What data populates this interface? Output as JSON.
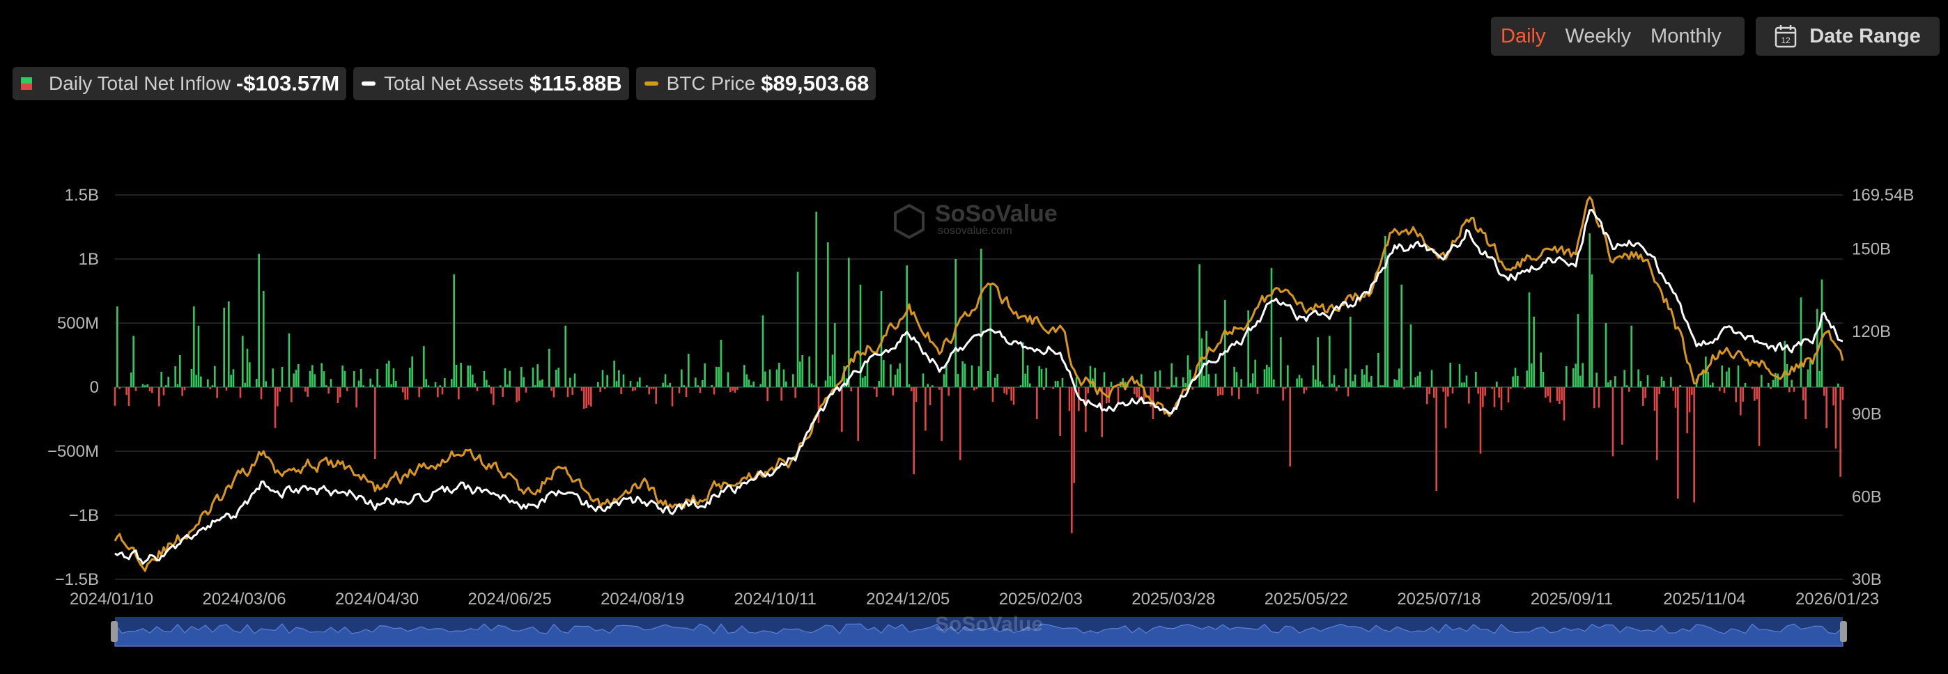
{
  "controls": {
    "periods": [
      {
        "label": "Daily",
        "active": true
      },
      {
        "label": "Weekly",
        "active": false
      },
      {
        "label": "Monthly",
        "active": false
      }
    ],
    "date_range_label": "Date Range",
    "date_range_icon": "calendar-icon",
    "calendar_icon_text": "12"
  },
  "legend": {
    "inflow": {
      "label": "Daily Total Net Inflow",
      "value": "-$103.57M",
      "colors": [
        "#2ecc60",
        "#e04646"
      ]
    },
    "assets": {
      "label": "Total Net Assets",
      "value": "$115.88B",
      "color": "#ffffff"
    },
    "btc": {
      "label": "BTC Price",
      "value": "$89,503.68",
      "color": "#d9961c"
    }
  },
  "watermark": {
    "name": "SoSoValue",
    "url": "sosovalue.com"
  },
  "chart_data": {
    "type": "bar",
    "x_range": [
      "2024/01/10",
      "2026/01/23"
    ],
    "x_tick_labels": [
      "2024/01/10",
      "2024/03/06",
      "2024/04/30",
      "2024/06/25",
      "2024/08/19",
      "2024/10/11",
      "2024/12/05",
      "2025/02/03",
      "2025/03/28",
      "2025/05/22",
      "2025/07/18",
      "2025/09/11",
      "2025/11/04",
      "2026/01/23"
    ],
    "y_left": {
      "ticks": [
        1.5,
        1,
        0.5,
        0,
        -0.5,
        -1,
        -1.5
      ],
      "tick_labels": [
        "1.5B",
        "1B",
        "500M",
        "0",
        "−500M",
        "−1B",
        "−1.5B"
      ],
      "ylim": [
        -1.5,
        1.5
      ],
      "unit": "USD billions"
    },
    "y_right": {
      "tick_labels": [
        "169.54B",
        "150B",
        "120B",
        "90B",
        "60B",
        "30B"
      ],
      "tick_values": [
        169.54,
        150,
        120,
        90,
        60,
        30
      ],
      "ylim": [
        30,
        169.54
      ],
      "unit": "USD billions"
    },
    "grid": true,
    "legend_position": "top-left",
    "colors": {
      "inflow_pos": "#2ecc60",
      "inflow_neg": "#e04646",
      "assets": "#ffffff",
      "btc": "#d9961c",
      "navigator": "#1f3a78"
    },
    "inflow_series": {
      "name": "Daily Total Net Inflow",
      "spikes": [
        [
          "2024/01/11",
          0.63
        ],
        [
          "2024/01/18",
          0.4
        ],
        [
          "2024/01/29",
          -0.15
        ],
        [
          "2024/02/07",
          0.25
        ],
        [
          "2024/02/13",
          0.63
        ],
        [
          "2024/02/15",
          0.48
        ],
        [
          "2024/02/26",
          0.62
        ],
        [
          "2024/02/28",
          0.67
        ],
        [
          "2024/03/05",
          0.4
        ],
        [
          "2024/03/07",
          0.3
        ],
        [
          "2024/03/12",
          1.04
        ],
        [
          "2024/03/14",
          0.75
        ],
        [
          "2024/03/19",
          -0.32
        ],
        [
          "2024/03/20",
          -0.15
        ],
        [
          "2024/03/25",
          0.42
        ],
        [
          "2024/04/16",
          -0.08
        ],
        [
          "2024/05/01",
          -0.56
        ],
        [
          "2024/05/17",
          0.24
        ],
        [
          "2024/05/22",
          0.32
        ],
        [
          "2024/06/04",
          0.88
        ],
        [
          "2024/06/07",
          0.19
        ],
        [
          "2024/06/21",
          -0.14
        ],
        [
          "2024/07/15",
          0.3
        ],
        [
          "2024/07/22",
          0.48
        ],
        [
          "2024/08/01",
          -0.14
        ],
        [
          "2024/09/06",
          -0.15
        ],
        [
          "2024/09/13",
          0.26
        ],
        [
          "2024/09/27",
          0.37
        ],
        [
          "2024/10/15",
          0.56
        ],
        [
          "2024/10/22",
          0.19
        ],
        [
          "2024/10/30",
          0.9
        ],
        [
          "2024/11/07",
          1.37
        ],
        [
          "2024/11/08",
          -0.28
        ],
        [
          "2024/11/12",
          1.13
        ],
        [
          "2024/11/15",
          0.5
        ],
        [
          "2024/11/18",
          -0.35
        ],
        [
          "2024/11/21",
          1.01
        ],
        [
          "2024/11/25",
          -0.42
        ],
        [
          "2024/11/26",
          0.8
        ],
        [
          "2024/12/05",
          0.75
        ],
        [
          "2024/12/16",
          0.95
        ],
        [
          "2024/12/19",
          -0.68
        ],
        [
          "2024/12/24",
          -0.34
        ],
        [
          "2024/12/31",
          -0.42
        ],
        [
          "2025/01/06",
          1.0
        ],
        [
          "2025/01/08",
          -0.57
        ],
        [
          "2025/01/17",
          1.08
        ],
        [
          "2025/01/21",
          0.8
        ],
        [
          "2025/02/04",
          0.35
        ],
        [
          "2025/02/10",
          -0.25
        ],
        [
          "2025/02/20",
          -0.38
        ],
        [
          "2025/02/25",
          -1.14
        ],
        [
          "2025/02/26",
          -0.75
        ],
        [
          "2025/03/03",
          -0.35
        ],
        [
          "2025/03/10",
          -0.39
        ],
        [
          "2025/03/26",
          -0.12
        ],
        [
          "2025/04/01",
          -0.25
        ],
        [
          "2025/04/21",
          0.96
        ],
        [
          "2025/04/22",
          0.38
        ],
        [
          "2025/04/24",
          0.44
        ],
        [
          "2025/05/02",
          0.68
        ],
        [
          "2025/05/12",
          0.6
        ],
        [
          "2025/05/22",
          0.93
        ],
        [
          "2025/05/26",
          0.39
        ],
        [
          "2025/05/30",
          -0.62
        ],
        [
          "2025/06/11",
          0.39
        ],
        [
          "2025/06/16",
          0.4
        ],
        [
          "2025/06/25",
          0.55
        ],
        [
          "2025/07/10",
          1.18
        ],
        [
          "2025/07/11",
          1.03
        ],
        [
          "2025/07/17",
          0.8
        ],
        [
          "2025/07/21",
          0.49
        ],
        [
          "2025/08/01",
          -0.81
        ],
        [
          "2025/08/05",
          -0.32
        ],
        [
          "2025/08/20",
          -0.52
        ],
        [
          "2025/08/29",
          -0.18
        ],
        [
          "2025/09/01",
          -0.12
        ],
        [
          "2025/09/10",
          0.74
        ],
        [
          "2025/09/12",
          0.55
        ],
        [
          "2025/09/15",
          0.27
        ],
        [
          "2025/09/25",
          -0.26
        ],
        [
          "2025/10/01",
          0.57
        ],
        [
          "2025/10/06",
          1.2
        ],
        [
          "2025/10/07",
          0.88
        ],
        [
          "2025/10/13",
          0.5
        ],
        [
          "2025/10/16",
          -0.54
        ],
        [
          "2025/10/20",
          -0.45
        ],
        [
          "2025/10/24",
          0.48
        ],
        [
          "2025/11/04",
          -0.57
        ],
        [
          "2025/11/13",
          -0.87
        ],
        [
          "2025/11/17",
          -0.36
        ],
        [
          "2025/11/20",
          -0.9
        ],
        [
          "2025/11/26",
          0.12
        ],
        [
          "2025/12/10",
          -0.22
        ],
        [
          "2025/12/18",
          -0.46
        ],
        [
          "2025/12/29",
          0.36
        ],
        [
          "2026/01/05",
          0.7
        ],
        [
          "2026/01/07",
          -0.25
        ],
        [
          "2026/01/12",
          0.61
        ],
        [
          "2026/01/14",
          0.84
        ],
        [
          "2026/01/16",
          -0.32
        ],
        [
          "2026/01/20",
          -0.48
        ],
        [
          "2026/01/22",
          -0.7
        ],
        [
          "2026/01/23",
          -0.1
        ]
      ]
    },
    "assets_series": {
      "name": "Total Net Assets",
      "points": [
        [
          "2024/01/10",
          41
        ],
        [
          "2024/01/23",
          37
        ],
        [
          "2024/02/05",
          41
        ],
        [
          "2024/02/20",
          50
        ],
        [
          "2024/03/05",
          55
        ],
        [
          "2024/03/14",
          65
        ],
        [
          "2024/03/19",
          62
        ],
        [
          "2024/04/01",
          62
        ],
        [
          "2024/04/20",
          61
        ],
        [
          "2024/05/01",
          57
        ],
        [
          "2024/05/20",
          60
        ],
        [
          "2024/06/07",
          63
        ],
        [
          "2024/06/25",
          61
        ],
        [
          "2024/07/05",
          56
        ],
        [
          "2024/07/20",
          62
        ],
        [
          "2024/08/05",
          56
        ],
        [
          "2024/08/25",
          59
        ],
        [
          "2024/09/06",
          54
        ],
        [
          "2024/09/30",
          62
        ],
        [
          "2024/10/15",
          68
        ],
        [
          "2024/10/30",
          75
        ],
        [
          "2024/11/07",
          89
        ],
        [
          "2024/11/21",
          103
        ],
        [
          "2024/12/05",
          113
        ],
        [
          "2024/12/17",
          119
        ],
        [
          "2024/12/30",
          107
        ],
        [
          "2025/01/20",
          122
        ],
        [
          "2025/02/03",
          115
        ],
        [
          "2025/02/20",
          113
        ],
        [
          "2025/02/28",
          96
        ],
        [
          "2025/03/10",
          92
        ],
        [
          "2025/03/25",
          96
        ],
        [
          "2025/04/08",
          88
        ],
        [
          "2025/04/22",
          107
        ],
        [
          "2025/05/10",
          117
        ],
        [
          "2025/05/22",
          131
        ],
        [
          "2025/06/05",
          124
        ],
        [
          "2025/06/20",
          127
        ],
        [
          "2025/07/03",
          134
        ],
        [
          "2025/07/14",
          150
        ],
        [
          "2025/07/25",
          151
        ],
        [
          "2025/08/05",
          146
        ],
        [
          "2025/08/14",
          156
        ],
        [
          "2025/08/31",
          139
        ],
        [
          "2025/09/20",
          146
        ],
        [
          "2025/09/30",
          143
        ],
        [
          "2025/10/06",
          164
        ],
        [
          "2025/10/16",
          150
        ],
        [
          "2025/10/28",
          153
        ],
        [
          "2025/11/10",
          137
        ],
        [
          "2025/11/21",
          114
        ],
        [
          "2025/12/01",
          120
        ],
        [
          "2025/12/15",
          117
        ],
        [
          "2025/12/31",
          113
        ],
        [
          "2026/01/10",
          118
        ],
        [
          "2026/01/15",
          128
        ],
        [
          "2026/01/23",
          116
        ]
      ]
    },
    "btc_series": {
      "name": "BTC Price",
      "points": [
        [
          "2024/01/10",
          46
        ],
        [
          "2024/01/23",
          37
        ],
        [
          "2024/02/05",
          43
        ],
        [
          "2024/02/20",
          55
        ],
        [
          "2024/03/05",
          68
        ],
        [
          "2024/03/14",
          76
        ],
        [
          "2024/03/19",
          70
        ],
        [
          "2024/04/01",
          72
        ],
        [
          "2024/04/20",
          71
        ],
        [
          "2024/05/01",
          63
        ],
        [
          "2024/05/20",
          70
        ],
        [
          "2024/06/07",
          77
        ],
        [
          "2024/06/25",
          69
        ],
        [
          "2024/07/05",
          61
        ],
        [
          "2024/07/20",
          70
        ],
        [
          "2024/08/05",
          56
        ],
        [
          "2024/08/25",
          65
        ],
        [
          "2024/09/06",
          55
        ],
        [
          "2024/09/30",
          66
        ],
        [
          "2024/10/15",
          69
        ],
        [
          "2024/10/30",
          75
        ],
        [
          "2024/11/07",
          90
        ],
        [
          "2024/11/21",
          110
        ],
        [
          "2024/12/05",
          117
        ],
        [
          "2024/12/17",
          128
        ],
        [
          "2024/12/30",
          112
        ],
        [
          "2025/01/20",
          137
        ],
        [
          "2025/02/03",
          125
        ],
        [
          "2025/02/20",
          121
        ],
        [
          "2025/02/28",
          103
        ],
        [
          "2025/03/10",
          98
        ],
        [
          "2025/03/25",
          101
        ],
        [
          "2025/04/08",
          90
        ],
        [
          "2025/04/22",
          112
        ],
        [
          "2025/05/10",
          123
        ],
        [
          "2025/05/22",
          134
        ],
        [
          "2025/06/05",
          130
        ],
        [
          "2025/06/20",
          127
        ],
        [
          "2025/07/03",
          135
        ],
        [
          "2025/07/14",
          158
        ],
        [
          "2025/07/25",
          155
        ],
        [
          "2025/08/05",
          148
        ],
        [
          "2025/08/14",
          162
        ],
        [
          "2025/08/31",
          144
        ],
        [
          "2025/09/20",
          148
        ],
        [
          "2025/09/30",
          147
        ],
        [
          "2025/10/06",
          170
        ],
        [
          "2025/10/16",
          146
        ],
        [
          "2025/10/28",
          148
        ],
        [
          "2025/11/10",
          128
        ],
        [
          "2025/11/21",
          101
        ],
        [
          "2025/12/01",
          113
        ],
        [
          "2025/12/15",
          109
        ],
        [
          "2025/12/31",
          106
        ],
        [
          "2026/01/10",
          110
        ],
        [
          "2026/01/15",
          121
        ],
        [
          "2026/01/23",
          109
        ]
      ]
    }
  }
}
